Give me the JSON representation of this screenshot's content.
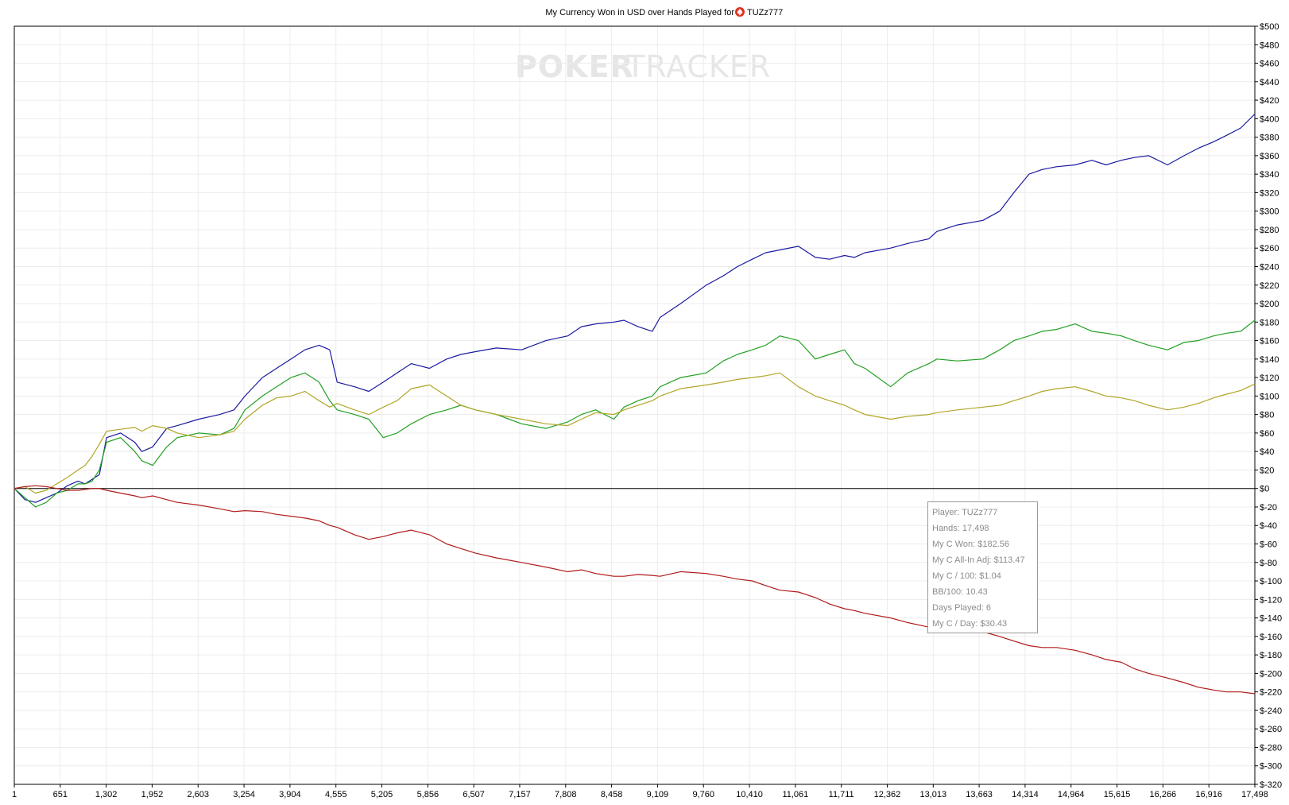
{
  "chart_data": {
    "type": "line",
    "title": "My Currency Won in USD over Hands Played for",
    "player_name": "TUZz777",
    "player_icon": "spade-chip-icon",
    "watermark_left": "POKER",
    "watermark_right": "TRACKER",
    "xlim": [
      1,
      17498
    ],
    "ylim": [
      -320,
      500
    ],
    "x_tick_labels": [
      "1",
      "651",
      "1,302",
      "1,952",
      "2,603",
      "3,254",
      "3,904",
      "4,555",
      "5,205",
      "5,856",
      "6,507",
      "7,157",
      "7,808",
      "8,458",
      "9,109",
      "9,760",
      "10,410",
      "11,061",
      "11,711",
      "12,362",
      "13,013",
      "13,663",
      "14,314",
      "14,964",
      "15,615",
      "16,266",
      "16,916",
      "17,498"
    ],
    "y_tick_labels": [
      "$500",
      "$480",
      "$460",
      "$440",
      "$420",
      "$400",
      "$380",
      "$360",
      "$340",
      "$320",
      "$300",
      "$280",
      "$260",
      "$240",
      "$220",
      "$200",
      "$180",
      "$160",
      "$140",
      "$120",
      "$100",
      "$80",
      "$60",
      "$40",
      "$20",
      "$0",
      "$-20",
      "$-40",
      "$-60",
      "$-80",
      "$-100",
      "$-120",
      "$-140",
      "$-160",
      "$-180",
      "$-200",
      "$-220",
      "$-240",
      "$-260",
      "$-280",
      "$-300",
      "$-320"
    ],
    "y_tick_values": [
      500,
      480,
      460,
      440,
      420,
      400,
      380,
      360,
      340,
      320,
      300,
      280,
      260,
      240,
      220,
      200,
      180,
      160,
      140,
      120,
      100,
      80,
      60,
      40,
      20,
      0,
      -20,
      -40,
      -60,
      -80,
      -100,
      -120,
      -140,
      -160,
      -180,
      -200,
      -220,
      -240,
      -260,
      -280,
      -300,
      -320
    ],
    "grid": true,
    "series": [
      {
        "color": "#1a1aa0",
        "x": [
          1,
          150,
          300,
          450,
          600,
          750,
          900,
          1000,
          1100,
          1200,
          1302,
          1500,
          1700,
          1800,
          1952,
          2150,
          2300,
          2603,
          2900,
          3100,
          3254,
          3500,
          3700,
          3904,
          4100,
          4300,
          4450,
          4555,
          4800,
          5000,
          5205,
          5400,
          5600,
          5856,
          6100,
          6300,
          6507,
          6800,
          7157,
          7500,
          7808,
          8000,
          8200,
          8458,
          8600,
          8800,
          9000,
          9109,
          9400,
          9760,
          10000,
          10200,
          10410,
          10600,
          10800,
          11061,
          11300,
          11500,
          11711,
          11850,
          12000,
          12362,
          12600,
          12900,
          13013,
          13300,
          13663,
          13900,
          14100,
          14314,
          14500,
          14700,
          14964,
          15200,
          15400,
          15615,
          15800,
          16000,
          16266,
          16500,
          16700,
          16916,
          17100,
          17300,
          17498
        ],
        "y": [
          0,
          -12,
          -15,
          -10,
          -5,
          3,
          8,
          5,
          10,
          15,
          55,
          60,
          50,
          40,
          45,
          65,
          68,
          75,
          80,
          85,
          100,
          120,
          130,
          140,
          150,
          155,
          150,
          115,
          110,
          105,
          115,
          125,
          135,
          130,
          140,
          145,
          148,
          152,
          150,
          160,
          165,
          175,
          178,
          180,
          182,
          175,
          170,
          185,
          200,
          220,
          230,
          240,
          248,
          255,
          258,
          262,
          250,
          248,
          252,
          250,
          255,
          260,
          265,
          270,
          278,
          285,
          290,
          300,
          320,
          340,
          345,
          348,
          350,
          355,
          350,
          355,
          358,
          360,
          350,
          360,
          368,
          375,
          382,
          390,
          405
        ]
      },
      {
        "color": "#22a022",
        "x": [
          1,
          150,
          300,
          450,
          600,
          750,
          900,
          1000,
          1100,
          1200,
          1302,
          1500,
          1700,
          1800,
          1952,
          2150,
          2300,
          2603,
          2900,
          3100,
          3254,
          3500,
          3700,
          3904,
          4100,
          4300,
          4450,
          4555,
          4800,
          5000,
          5205,
          5400,
          5600,
          5856,
          6100,
          6300,
          6507,
          6800,
          7157,
          7500,
          7808,
          8000,
          8200,
          8458,
          8600,
          8800,
          9000,
          9109,
          9400,
          9760,
          10000,
          10200,
          10410,
          10600,
          10800,
          11061,
          11300,
          11500,
          11711,
          11850,
          12000,
          12362,
          12600,
          12900,
          13013,
          13300,
          13663,
          13900,
          14100,
          14314,
          14500,
          14700,
          14964,
          15200,
          15400,
          15615,
          15800,
          16000,
          16266,
          16500,
          16700,
          16916,
          17100,
          17300,
          17498
        ],
        "y": [
          0,
          -10,
          -20,
          -15,
          -5,
          -2,
          5,
          5,
          8,
          20,
          50,
          55,
          40,
          30,
          25,
          45,
          55,
          60,
          58,
          65,
          85,
          100,
          110,
          120,
          125,
          115,
          95,
          85,
          80,
          75,
          55,
          60,
          70,
          80,
          85,
          90,
          85,
          80,
          70,
          65,
          72,
          80,
          85,
          75,
          88,
          95,
          100,
          110,
          120,
          125,
          138,
          145,
          150,
          155,
          165,
          160,
          140,
          145,
          150,
          135,
          130,
          110,
          125,
          135,
          140,
          138,
          140,
          150,
          160,
          165,
          170,
          172,
          178,
          170,
          168,
          165,
          160,
          155,
          150,
          158,
          160,
          165,
          168,
          170,
          182
        ]
      },
      {
        "color": "#b0a628",
        "x": [
          1,
          150,
          300,
          450,
          600,
          750,
          900,
          1000,
          1100,
          1200,
          1302,
          1500,
          1700,
          1800,
          1952,
          2150,
          2300,
          2603,
          2900,
          3100,
          3254,
          3500,
          3700,
          3904,
          4100,
          4300,
          4450,
          4555,
          4800,
          5000,
          5205,
          5400,
          5600,
          5856,
          6100,
          6300,
          6507,
          6800,
          7157,
          7500,
          7808,
          8000,
          8200,
          8458,
          8600,
          8800,
          9000,
          9109,
          9400,
          9760,
          10000,
          10200,
          10410,
          10600,
          10800,
          11061,
          11300,
          11500,
          11711,
          11850,
          12000,
          12362,
          12600,
          12900,
          13013,
          13300,
          13663,
          13900,
          14100,
          14314,
          14500,
          14700,
          14964,
          15200,
          15400,
          15615,
          15800,
          16000,
          16266,
          16500,
          16700,
          16916,
          17100,
          17300,
          17498
        ],
        "y": [
          0,
          2,
          -5,
          -2,
          5,
          12,
          20,
          25,
          35,
          48,
          62,
          64,
          66,
          62,
          68,
          65,
          60,
          55,
          58,
          62,
          75,
          90,
          98,
          100,
          105,
          95,
          88,
          92,
          85,
          80,
          88,
          95,
          108,
          112,
          100,
          90,
          85,
          80,
          75,
          70,
          68,
          75,
          82,
          80,
          85,
          90,
          95,
          100,
          108,
          112,
          115,
          118,
          120,
          122,
          125,
          110,
          100,
          95,
          90,
          85,
          80,
          75,
          78,
          80,
          82,
          85,
          88,
          90,
          95,
          100,
          105,
          108,
          110,
          105,
          100,
          98,
          95,
          90,
          85,
          88,
          92,
          98,
          102,
          106,
          113
        ]
      },
      {
        "color": "#b01a1a",
        "x": [
          1,
          150,
          300,
          450,
          600,
          750,
          900,
          1000,
          1100,
          1200,
          1302,
          1500,
          1700,
          1800,
          1952,
          2150,
          2300,
          2603,
          2900,
          3100,
          3254,
          3500,
          3700,
          3904,
          4100,
          4300,
          4450,
          4555,
          4800,
          5000,
          5205,
          5400,
          5600,
          5856,
          6100,
          6300,
          6507,
          6800,
          7157,
          7500,
          7808,
          8000,
          8200,
          8458,
          8600,
          8800,
          9000,
          9109,
          9400,
          9760,
          10000,
          10200,
          10410,
          10600,
          10800,
          11061,
          11300,
          11500,
          11711,
          11850,
          12000,
          12362,
          12600,
          12900,
          13013,
          13300,
          13663,
          13900,
          14100,
          14314,
          14500,
          14700,
          14964,
          15200,
          15400,
          15615,
          15800,
          16000,
          16266,
          16500,
          16700,
          16916,
          17100,
          17300,
          17498
        ],
        "y": [
          0,
          2,
          3,
          2,
          0,
          -2,
          -2,
          -1,
          0,
          0,
          -2,
          -5,
          -8,
          -10,
          -8,
          -12,
          -15,
          -18,
          -22,
          -25,
          -24,
          -25,
          -28,
          -30,
          -32,
          -35,
          -40,
          -42,
          -50,
          -55,
          -52,
          -48,
          -45,
          -50,
          -60,
          -65,
          -70,
          -75,
          -80,
          -85,
          -90,
          -88,
          -92,
          -95,
          -95,
          -93,
          -94,
          -95,
          -90,
          -92,
          -95,
          -98,
          -100,
          -105,
          -110,
          -112,
          -118,
          -125,
          -130,
          -132,
          -135,
          -140,
          -145,
          -150,
          -150,
          -152,
          -155,
          -160,
          -165,
          -170,
          -172,
          -172,
          -175,
          -180,
          -185,
          -188,
          -195,
          -200,
          -205,
          -210,
          -215,
          -218,
          -220,
          -220,
          -222
        ]
      }
    ]
  },
  "tooltip": {
    "player": "Player: TUZz777",
    "hands": "Hands: 17,498",
    "won": "My C Won: $182.56",
    "allin": "My C All-In Adj: $113.47",
    "per100": "My C / 100: $1.04",
    "bb100": "BB/100: 10.43",
    "days": "Days Played: 6",
    "perday": "My C / Day: $30.43"
  }
}
